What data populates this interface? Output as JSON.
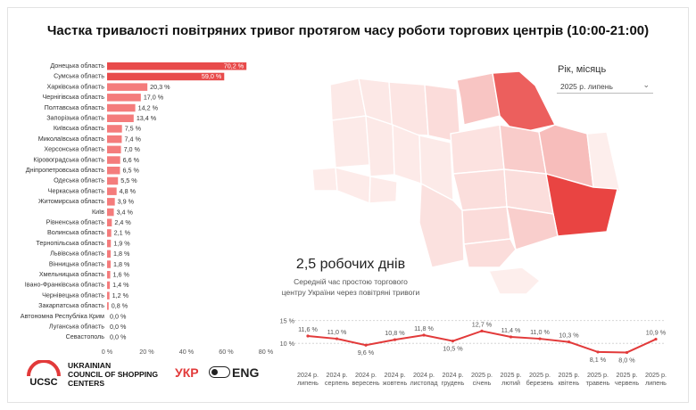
{
  "title": "Частка тривалості повітряних тривог протягом часу роботи торгових центрів (10:00-21:00)",
  "filter": {
    "label": "Рік, місяць",
    "value": "2025 р. липень"
  },
  "kpi": {
    "value": "2,5 робочих днів",
    "caption_line1": "Середній час простою торгового",
    "caption_line2": "центру України через повітряні тривоги"
  },
  "brand": {
    "abbr": "UCSC",
    "line1": "UKRAINIAN",
    "line2": "COUNCIL OF SHOPPING",
    "line3": "CENTERS"
  },
  "lang": {
    "ukr": "УКР",
    "eng": "ENG"
  },
  "colors": {
    "bar_high": "#e84b4b",
    "bar": "#f47c7c",
    "accent": "#e23a3a"
  },
  "chart_data": [
    {
      "type": "bar",
      "orientation": "horizontal",
      "categories": [
        "Донецька область",
        "Сумська область",
        "Харківська область",
        "Чернігівська область",
        "Полтавська область",
        "Запорізька область",
        "Київська область",
        "Миколаївська область",
        "Херсонська область",
        "Кіровоградська область",
        "Дніпропетровська область",
        "Одеська область",
        "Черкаська область",
        "Житомирська область",
        "Київ",
        "Рівненська область",
        "Волинська область",
        "Тернопільська область",
        "Львівська область",
        "Вінницька область",
        "Хмельницька область",
        "Івано-Франківська область",
        "Чернівецька область",
        "Закарпатська область",
        "Автономна Республіка Крим",
        "Луганська область",
        "Севастополь"
      ],
      "values": [
        70.2,
        59.0,
        20.3,
        17.0,
        14.2,
        13.4,
        7.5,
        7.4,
        7.0,
        6.6,
        6.5,
        5.5,
        4.8,
        3.9,
        3.4,
        2.4,
        2.1,
        1.9,
        1.8,
        1.8,
        1.6,
        1.4,
        1.2,
        0.8,
        0.0,
        0.0,
        0.0
      ],
      "value_labels": [
        "70,2 %",
        "59,0 %",
        "20,3 %",
        "17,0 %",
        "14,2 %",
        "13,4 %",
        "7,5 %",
        "7,4 %",
        "7,0 %",
        "6,6 %",
        "6,5 %",
        "5,5 %",
        "4,8 %",
        "3,9 %",
        "3,4 %",
        "2,4 %",
        "2,1 %",
        "1,9 %",
        "1,8 %",
        "1,8 %",
        "1,6 %",
        "1,4 %",
        "1,2 %",
        "0,8 %",
        "0,0 %",
        "0,0 %",
        "0,0 %"
      ],
      "xticks": [
        "0 %",
        "20 %",
        "40 %",
        "60 %",
        "80 %"
      ],
      "xlim": [
        0,
        80
      ]
    },
    {
      "type": "line",
      "x": [
        "2024 р. липень",
        "2024 р. серпень",
        "2024 р. вересень",
        "2024 р. жовтень",
        "2024 р. листопад",
        "2024 р. грудень",
        "2025 р. січень",
        "2025 р. лютий",
        "2025 р. березень",
        "2025 р. квітень",
        "2025 р. травень",
        "2025 р. червень",
        "2025 р. липень"
      ],
      "values": [
        11.6,
        11.0,
        9.6,
        10.8,
        11.8,
        10.5,
        12.7,
        11.4,
        11.0,
        10.3,
        8.1,
        8.0,
        10.9
      ],
      "value_labels": [
        "11,6 %",
        "11,0 %",
        "9,6 %",
        "10,8 %",
        "11,8 %",
        "10,5 %",
        "12,7 %",
        "11,4 %",
        "11,0 %",
        "10,3 %",
        "8,1 %",
        "8,0 %",
        "10,9 %"
      ],
      "yticks": [
        "15 %",
        "10 %"
      ],
      "ylim": [
        7.5,
        15.5
      ]
    }
  ],
  "map": {
    "type": "choropleth",
    "regions": [
      "Волинська",
      "Рівненська",
      "Житомирська",
      "Київська",
      "Чернігівська",
      "Сумська",
      "Львівська",
      "Тернопільська",
      "Хмельницька",
      "Вінницька",
      "Черкаська",
      "Полтавська",
      "Харківська",
      "Луганська",
      "Закарпатська",
      "Івано-Франківська",
      "Чернівецька",
      "Кіровоградська",
      "Дніпропетровська",
      "Донецька",
      "Одеська",
      "Миколаївська",
      "Запорізька",
      "Херсонська",
      "Крим"
    ],
    "values": [
      2.1,
      2.4,
      3.9,
      7.5,
      17.0,
      59.0,
      1.8,
      1.9,
      1.6,
      1.8,
      4.8,
      14.2,
      20.3,
      0.0,
      0.8,
      1.4,
      1.2,
      6.6,
      6.5,
      70.2,
      5.5,
      7.4,
      13.4,
      7.0,
      0.0
    ]
  }
}
